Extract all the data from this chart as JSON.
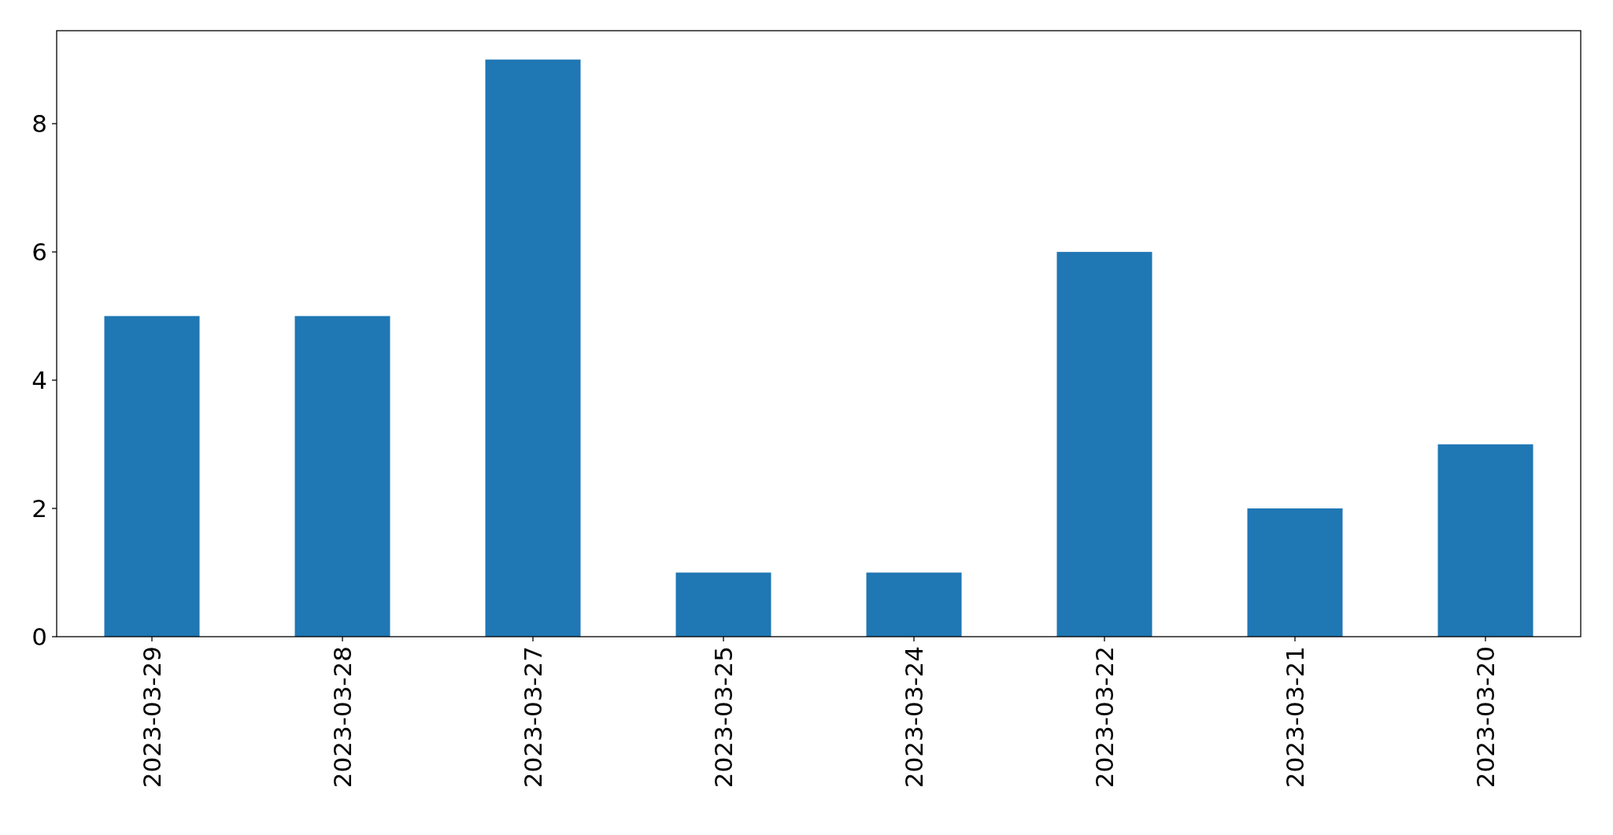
{
  "chart_data": {
    "type": "bar",
    "categories": [
      "2023-03-29",
      "2023-03-28",
      "2023-03-27",
      "2023-03-25",
      "2023-03-24",
      "2023-03-22",
      "2023-03-21",
      "2023-03-20"
    ],
    "values": [
      5,
      5,
      9,
      1,
      1,
      6,
      2,
      3
    ],
    "color": "#1f77b4",
    "ylim": [
      0,
      9.45
    ],
    "yticks": [
      0,
      2,
      4,
      6,
      8
    ],
    "grid": false
  }
}
